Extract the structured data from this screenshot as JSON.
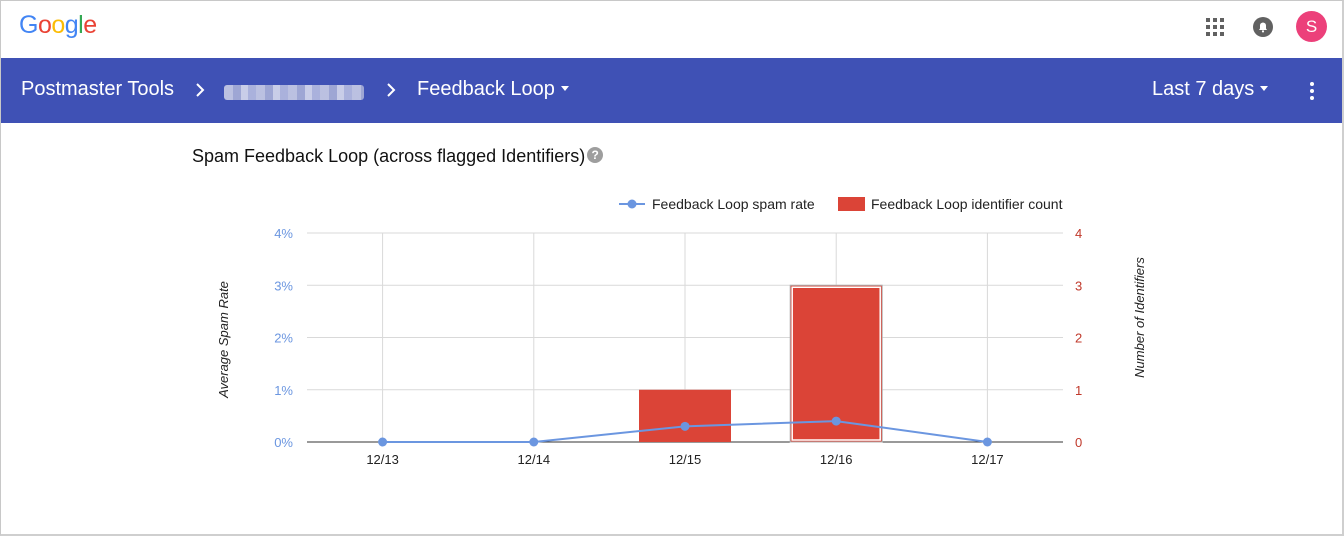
{
  "header": {
    "logo_letters": [
      {
        "ch": "G",
        "color": "#4285f4"
      },
      {
        "ch": "o",
        "color": "#ea4335"
      },
      {
        "ch": "o",
        "color": "#fbbc05"
      },
      {
        "ch": "g",
        "color": "#4285f4"
      },
      {
        "ch": "l",
        "color": "#34a853"
      },
      {
        "ch": "e",
        "color": "#ea4335"
      }
    ],
    "avatar_letter": "S",
    "avatar_color": "#ec407a",
    "icons": [
      "apps-grid-icon",
      "notifications-bell-icon"
    ]
  },
  "nav": {
    "app_title": "Postmaster Tools",
    "domain_crumb": "",
    "section": "Feedback Loop",
    "date_range": "Last 7 days",
    "bar_color": "#3f51b5"
  },
  "main": {
    "title": "Spam Feedback Loop (across flagged Identifiers)",
    "help_glyph": "?"
  },
  "chart_data": {
    "type": "bar+line",
    "categories": [
      "12/13",
      "12/14",
      "12/15",
      "12/16",
      "12/17"
    ],
    "series": [
      {
        "name": "Feedback Loop spam rate",
        "kind": "line",
        "axis": "left",
        "values": [
          0,
          0,
          0.3,
          0.4,
          0
        ],
        "color": "#6b96e0"
      },
      {
        "name": "Feedback Loop identifier count",
        "kind": "bar",
        "axis": "right",
        "values": [
          0,
          0,
          1,
          3,
          0
        ],
        "color": "#db4437"
      }
    ],
    "left_axis": {
      "label": "Average Spam Rate",
      "ticks": [
        "0%",
        "1%",
        "2%",
        "3%",
        "4%"
      ],
      "range": [
        0,
        4
      ],
      "color": "#6b96e0"
    },
    "right_axis": {
      "label": "Number of Identifiers",
      "ticks": [
        "0",
        "1",
        "2",
        "3",
        "4"
      ],
      "range": [
        0,
        4
      ],
      "color": "#c0392b"
    },
    "grid": true,
    "legend_position": "top-right",
    "highlighted_category": "12/16"
  }
}
